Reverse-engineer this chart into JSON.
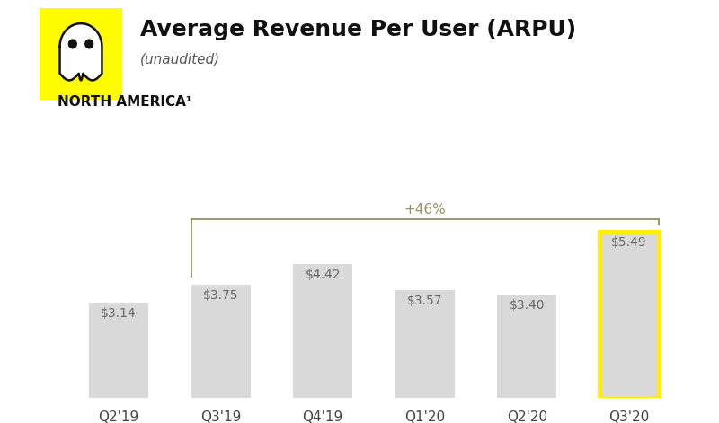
{
  "categories": [
    "Q2'19",
    "Q3'19",
    "Q4'19",
    "Q1'20",
    "Q2'20",
    "Q3'20"
  ],
  "values": [
    3.14,
    3.75,
    4.42,
    3.57,
    3.4,
    5.49
  ],
  "labels": [
    "$3.14",
    "$3.75",
    "$4.42",
    "$3.57",
    "$3.40",
    "$5.49"
  ],
  "bar_color": "#d9d9d9",
  "highlighted_bar_index": 5,
  "highlight_border_color": "#FFEE00",
  "title": "Average Revenue Per User (ARPU)",
  "subtitle": "(unaudited)",
  "region_label": "NORTH AMERICA¹",
  "growth_label": "+46%",
  "growth_from_index": 1,
  "growth_to_index": 5,
  "background_color": "#ffffff",
  "bar_label_color": "#666666",
  "axis_label_color": "#444444",
  "title_color": "#111111",
  "ylim": [
    0,
    7.0
  ],
  "bar_width": 0.58,
  "bracket_color": "#9a9060",
  "logo_yellow": "#FFFC00"
}
